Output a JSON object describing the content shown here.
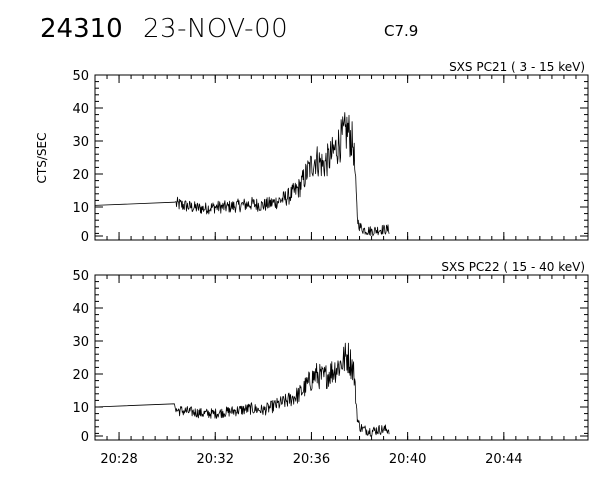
{
  "header": {
    "event_id": "24310",
    "date": "23-NOV-00",
    "flare_class": "C7.9"
  },
  "chart_data": [
    {
      "type": "line",
      "title": "SXS PC21  (  3 - 15 keV)",
      "ylabel": "CTS/SEC",
      "xlabel": "",
      "ylim": [
        0,
        50
      ],
      "yticks": [
        0,
        10,
        20,
        30,
        40,
        50
      ],
      "xlim": [
        "20:27:00",
        "20:47:30"
      ],
      "xticks": [
        "20:28",
        "20:32",
        "20:36",
        "20:40",
        "20:44"
      ],
      "grid": false,
      "series": [
        {
          "x": [
            "20:27:00",
            "20:30:18",
            "20:30:22",
            "20:31:00",
            "20:31:30",
            "20:32:00",
            "20:32:30",
            "20:33:00",
            "20:33:30",
            "20:34:00",
            "20:34:30",
            "20:35:00",
            "20:35:30",
            "20:35:50",
            "20:36:10",
            "20:36:30",
            "20:36:50",
            "20:37:10",
            "20:37:30",
            "20:37:45",
            "20:37:55",
            "20:38:00",
            "20:38:10",
            "20:38:30",
            "20:38:50",
            "20:39:10",
            "20:39:15"
          ],
          "y": [
            9.5,
            10.5,
            10,
            9,
            8.5,
            9,
            9,
            9.5,
            10,
            9.5,
            10.5,
            12,
            15,
            20,
            24,
            22,
            25,
            29,
            33,
            28,
            5,
            3,
            2,
            1.5,
            2,
            2,
            2
          ]
        }
      ]
    },
    {
      "type": "line",
      "title": "SXS PC22  ( 15 - 40 keV)",
      "ylabel": "",
      "xlabel": "",
      "ylim": [
        0,
        50
      ],
      "yticks": [
        0,
        10,
        20,
        30,
        40,
        50
      ],
      "xlim": [
        "20:27:00",
        "20:47:30"
      ],
      "xticks": [
        "20:28",
        "20:32",
        "20:36",
        "20:40",
        "20:44"
      ],
      "grid": false,
      "series": [
        {
          "x": [
            "20:27:00",
            "20:30:18",
            "20:30:22",
            "20:31:00",
            "20:31:30",
            "20:32:00",
            "20:32:30",
            "20:33:00",
            "20:33:30",
            "20:34:00",
            "20:34:30",
            "20:35:00",
            "20:35:30",
            "20:35:50",
            "20:36:10",
            "20:36:30",
            "20:36:50",
            "20:37:10",
            "20:37:30",
            "20:37:45",
            "20:37:55",
            "20:38:00",
            "20:38:10",
            "20:38:30",
            "20:38:50",
            "20:39:10",
            "20:39:15"
          ],
          "y": [
            9,
            10,
            8,
            7.5,
            7,
            7,
            7.5,
            8,
            8.5,
            8,
            9.5,
            11,
            13,
            16,
            19,
            18,
            20,
            22,
            25,
            21,
            5,
            3,
            2,
            1.5,
            2,
            2,
            2
          ]
        }
      ]
    }
  ]
}
